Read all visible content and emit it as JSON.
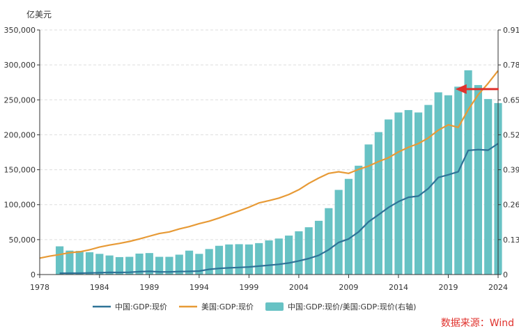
{
  "chart_data": {
    "type": "bar",
    "left_axis_unit": "亿美元",
    "source": "数据来源：Wind",
    "x_ticks": [
      "1978",
      "1984",
      "1989",
      "1994",
      "1999",
      "2004",
      "2009",
      "2014",
      "2019",
      "2024"
    ],
    "y_left_ticks": [
      "0",
      "50,000",
      "100,000",
      "150,000",
      "200,000",
      "250,000",
      "300,000",
      "350,000"
    ],
    "y_right_ticks": [
      "0",
      "0.13",
      "0.26",
      "0.39",
      "0.52",
      "0.65",
      "0.78",
      "0.91"
    ],
    "ylim_left": [
      0,
      350000
    ],
    "ylim_right": [
      0,
      0.91
    ],
    "xlim": [
      1978,
      2024
    ],
    "grid": "horizontal dashed",
    "legend_position": "bottom",
    "series": [
      {
        "name": "中国:GDP:现价",
        "type": "line",
        "axis": "left",
        "color": "#2e7397",
        "x": [
          1980,
          1981,
          1982,
          1983,
          1984,
          1985,
          1986,
          1987,
          1988,
          1989,
          1990,
          1991,
          1992,
          1993,
          1994,
          1995,
          1996,
          1997,
          1998,
          1999,
          2000,
          2001,
          2002,
          2003,
          2004,
          2005,
          2006,
          2007,
          2008,
          2009,
          2010,
          2011,
          2012,
          2013,
          2014,
          2015,
          2016,
          2017,
          2018,
          2019,
          2020,
          2021,
          2022,
          2023,
          2024
        ],
        "values": [
          1900,
          2000,
          2000,
          2300,
          2600,
          3100,
          3000,
          3300,
          4100,
          4600,
          3900,
          3800,
          4300,
          4500,
          5000,
          7500,
          8800,
          9600,
          10200,
          10900,
          12100,
          13400,
          14700,
          16600,
          19500,
          22900,
          27500,
          35500,
          46000,
          51000,
          61000,
          75500,
          85600,
          96000,
          104400,
          110600,
          112300,
          123100,
          138900,
          142800,
          147200,
          177600,
          178800,
          178000,
          187500
        ]
      },
      {
        "name": "美国:GDP:现价",
        "type": "line",
        "axis": "left",
        "color": "#e79a36",
        "x": [
          1978,
          1979,
          1980,
          1981,
          1982,
          1983,
          1984,
          1985,
          1986,
          1987,
          1988,
          1989,
          1990,
          1991,
          1992,
          1993,
          1994,
          1995,
          1996,
          1997,
          1998,
          1999,
          2000,
          2001,
          2002,
          2003,
          2004,
          2005,
          2006,
          2007,
          2008,
          2009,
          2010,
          2011,
          2012,
          2013,
          2014,
          2015,
          2016,
          2017,
          2018,
          2019,
          2020,
          2021,
          2022,
          2023,
          2024
        ],
        "values": [
          23500,
          26300,
          28600,
          31300,
          32500,
          35400,
          39300,
          42200,
          44600,
          47400,
          51000,
          54800,
          58700,
          61000,
          65200,
          68600,
          72900,
          76400,
          81000,
          86100,
          91000,
          96300,
          102500,
          105800,
          109400,
          114600,
          121400,
          130400,
          138100,
          144800,
          147100,
          144800,
          150500,
          155200,
          161600,
          167200,
          175500,
          182100,
          187500,
          195500,
          206600,
          214300,
          210600,
          235900,
          257400,
          273600,
          291800
        ]
      },
      {
        "name": "中国:GDP:现价/美国:GDP:现价(右轴)",
        "type": "bar",
        "axis": "right",
        "color": "#67c2c4",
        "x": [
          1980,
          1981,
          1982,
          1983,
          1984,
          1985,
          1986,
          1987,
          1988,
          1989,
          1990,
          1991,
          1992,
          1993,
          1994,
          1995,
          1996,
          1997,
          1998,
          1999,
          2000,
          2001,
          2002,
          2003,
          2004,
          2005,
          2006,
          2007,
          2008,
          2009,
          2010,
          2011,
          2012,
          2013,
          2014,
          2015,
          2016,
          2017,
          2018,
          2019,
          2020,
          2021,
          2022,
          2023,
          2024
        ],
        "values": [
          0.105,
          0.089,
          0.088,
          0.083,
          0.077,
          0.071,
          0.065,
          0.066,
          0.078,
          0.08,
          0.066,
          0.066,
          0.074,
          0.089,
          0.077,
          0.095,
          0.107,
          0.112,
          0.113,
          0.112,
          0.117,
          0.127,
          0.134,
          0.145,
          0.161,
          0.176,
          0.2,
          0.247,
          0.315,
          0.356,
          0.405,
          0.484,
          0.53,
          0.577,
          0.603,
          0.612,
          0.603,
          0.631,
          0.678,
          0.667,
          0.699,
          0.76,
          0.705,
          0.653,
          0.638
        ]
      }
    ],
    "annotation": {
      "type": "arrow",
      "color": "#e0312c",
      "direction": "left",
      "at_year": 2020,
      "at_ratio": 0.69
    }
  }
}
